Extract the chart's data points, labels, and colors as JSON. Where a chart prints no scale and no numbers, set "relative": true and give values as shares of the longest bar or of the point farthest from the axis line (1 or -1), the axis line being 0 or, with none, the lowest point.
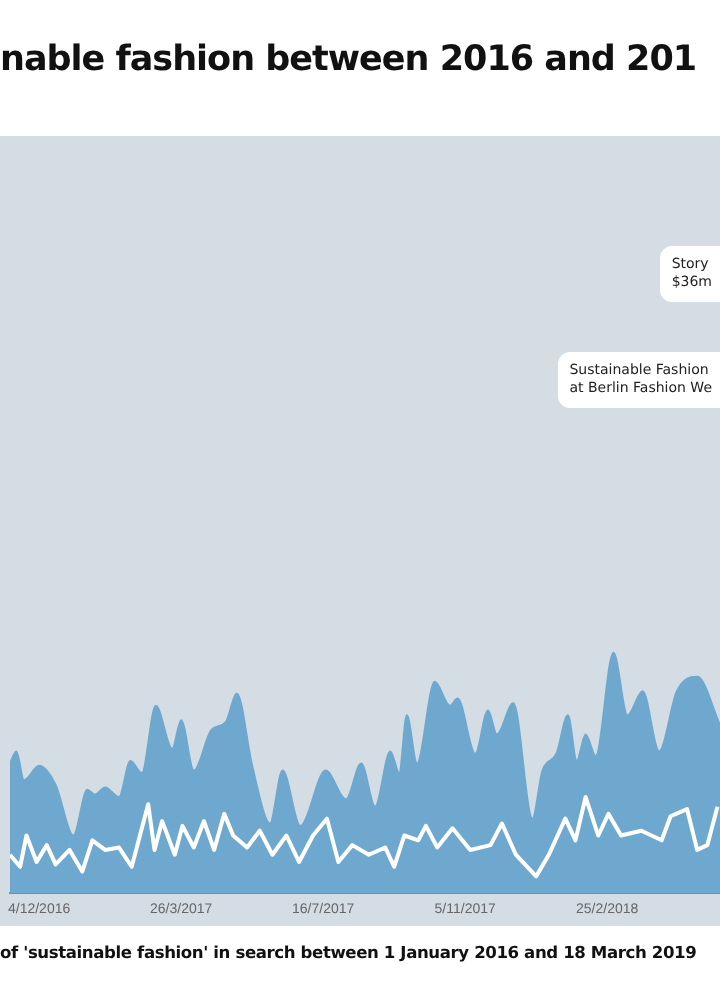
{
  "chart_data": {
    "type": "area",
    "title": "nable fashion between 2016 and 201",
    "relative": true,
    "annotations": [
      "Story\n$36m",
      "Sustainable Fashion\nat Berlin Fashion We",
      "of 'sustainable fashion' in search between 1 January 2016 and 18 March 2019"
    ],
    "xticks": [
      {
        "value": "2016-12-04",
        "label": "4/12/2016"
      },
      {
        "value": "2017-03-26",
        "label": "26/3/2017"
      },
      {
        "value": "2017-07-16",
        "label": "16/7/2017"
      },
      {
        "value": "2017-11-05",
        "label": "5/11/2017"
      },
      {
        "value": "2018-02-25",
        "label": "25/2/2018"
      }
    ],
    "xlim": [
      "2016-11-11",
      "2018-05-25"
    ],
    "series": [
      {
        "color": "#6fa8cf",
        "x": [
          "2016-11-11",
          "2016-11-16",
          "2016-11-22",
          "2016-12-04",
          "2016-12-17",
          "2016-12-31",
          "2017-01-11",
          "2017-01-17",
          "2017-01-25",
          "2017-02-05",
          "2017-02-14",
          "2017-02-23",
          "2017-03-06",
          "2017-03-19",
          "2017-03-26",
          "2017-04-05",
          "2017-04-19",
          "2017-04-30",
          "2017-05-09",
          "2017-05-21",
          "2017-06-04",
          "2017-06-14",
          "2017-06-28",
          "2017-07-18",
          "2017-08-03",
          "2017-08-15",
          "2017-08-26",
          "2017-09-07",
          "2017-09-14",
          "2017-09-20",
          "2017-09-28",
          "2017-10-12",
          "2017-10-24",
          "2017-10-30",
          "2017-11-13",
          "2017-11-23",
          "2017-11-30",
          "2017-12-13",
          "2017-12-28",
          "2018-01-05",
          "2018-01-16",
          "2018-01-25",
          "2018-02-01",
          "2018-02-08",
          "2018-02-16",
          "2018-03-02",
          "2018-03-13",
          "2018-03-25",
          "2018-04-07",
          "2018-04-21",
          "2018-05-07",
          "2018-05-25"
        ],
        "values": [
          0.54,
          0.59,
          0.47,
          0.53,
          0.45,
          0.24,
          0.43,
          0.41,
          0.44,
          0.4,
          0.55,
          0.5,
          0.78,
          0.6,
          0.72,
          0.51,
          0.68,
          0.71,
          0.83,
          0.53,
          0.29,
          0.51,
          0.28,
          0.51,
          0.39,
          0.54,
          0.36,
          0.59,
          0.5,
          0.74,
          0.54,
          0.88,
          0.78,
          0.81,
          0.58,
          0.76,
          0.66,
          0.79,
          0.31,
          0.51,
          0.58,
          0.74,
          0.55,
          0.66,
          0.57,
          1,
          0.74,
          0.84,
          0.59,
          0.84,
          0.9,
          0.7
        ]
      },
      {
        "type": "line",
        "color": "#ffffff",
        "x": [
          "2016-11-11",
          "2016-11-19",
          "2016-11-24",
          "2016-12-02",
          "2016-12-10",
          "2016-12-17",
          "2016-12-28",
          "2017-01-07",
          "2017-01-15",
          "2017-01-25",
          "2017-02-05",
          "2017-02-15",
          "2017-02-28",
          "2017-03-05",
          "2017-03-11",
          "2017-03-21",
          "2017-03-27",
          "2017-04-05",
          "2017-04-13",
          "2017-04-21",
          "2017-04-29",
          "2017-05-06",
          "2017-05-17",
          "2017-05-27",
          "2017-06-06",
          "2017-06-17",
          "2017-06-27",
          "2017-07-08",
          "2017-07-19",
          "2017-07-28",
          "2017-08-08",
          "2017-08-21",
          "2017-09-03",
          "2017-09-10",
          "2017-09-18",
          "2017-09-29",
          "2017-10-05",
          "2017-10-14",
          "2017-10-26",
          "2017-11-09",
          "2017-11-25",
          "2017-12-04",
          "2017-12-15",
          "2017-12-31",
          "2018-01-10",
          "2018-01-23",
          "2018-01-31",
          "2018-02-08",
          "2018-02-18",
          "2018-02-26",
          "2018-03-08",
          "2018-03-24",
          "2018-04-09",
          "2018-04-16",
          "2018-04-29",
          "2018-05-07",
          "2018-05-15",
          "2018-05-23"
        ],
        "values": [
          0.16,
          0.11,
          0.24,
          0.13,
          0.2,
          0.12,
          0.18,
          0.09,
          0.22,
          0.18,
          0.19,
          0.11,
          0.37,
          0.18,
          0.3,
          0.16,
          0.28,
          0.19,
          0.3,
          0.18,
          0.33,
          0.24,
          0.19,
          0.26,
          0.16,
          0.24,
          0.13,
          0.24,
          0.31,
          0.13,
          0.2,
          0.16,
          0.19,
          0.11,
          0.24,
          0.22,
          0.28,
          0.19,
          0.27,
          0.18,
          0.2,
          0.29,
          0.16,
          0.07,
          0.16,
          0.31,
          0.22,
          0.4,
          0.24,
          0.33,
          0.24,
          0.26,
          0.22,
          0.32,
          0.35,
          0.18,
          0.2,
          0.36
        ]
      }
    ]
  }
}
